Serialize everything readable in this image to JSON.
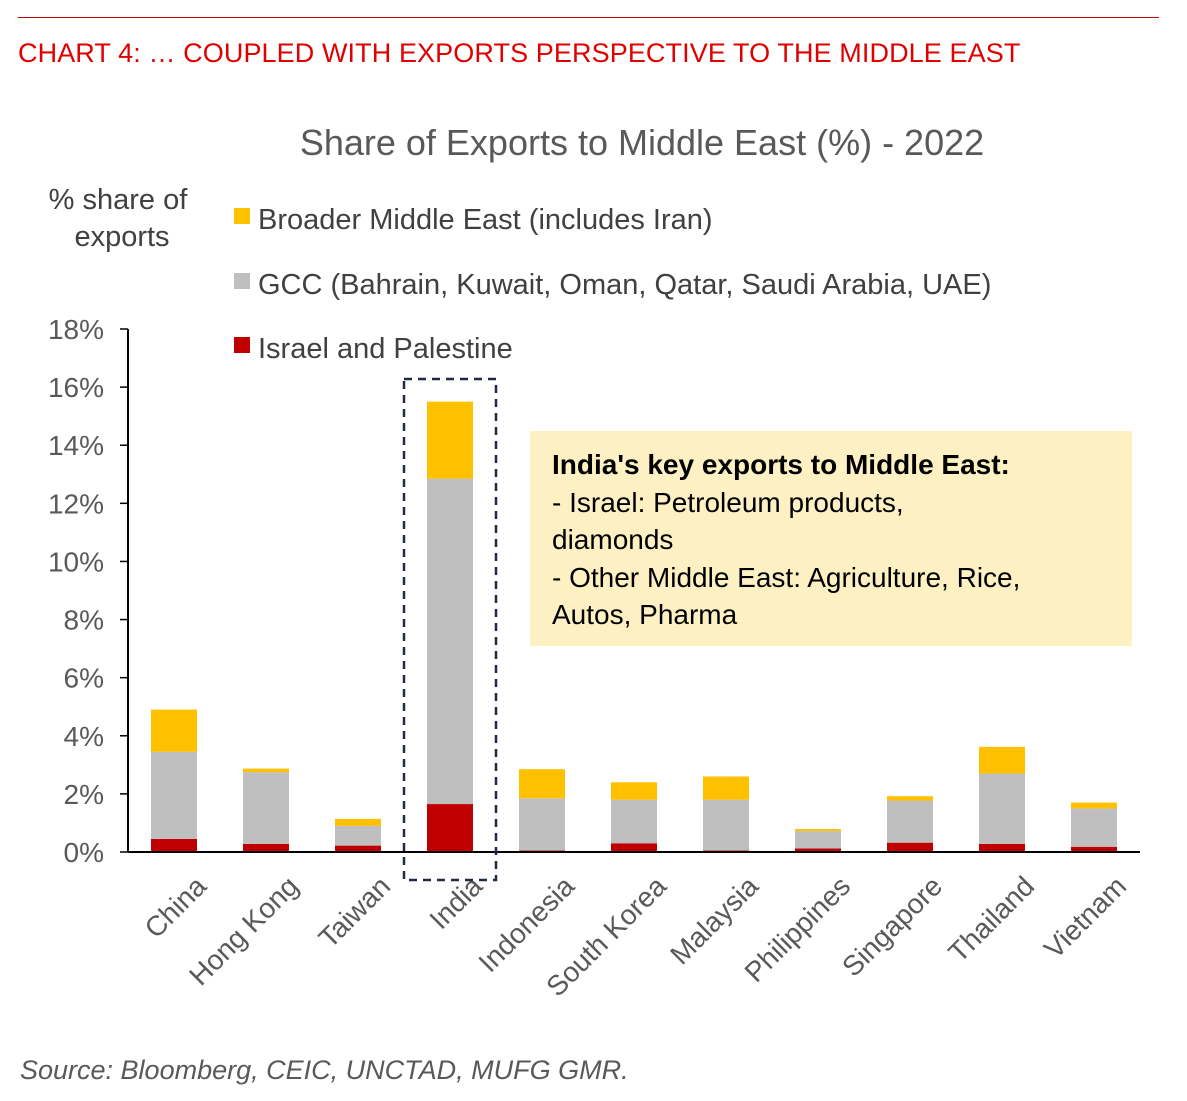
{
  "header": "CHART 4: … COUPLED WITH EXPORTS PERSPECTIVE TO THE MIDDLE EAST",
  "source": "Source: Bloomberg, CEIC, UNCTAD, MUFG GMR.",
  "highlight_category": "India",
  "annotation": {
    "heading": "India's key exports to Middle East:",
    "lines": [
      "- Israel: Petroleum products,",
      "diamonds",
      "- Other Middle East: Agriculture, Rice,",
      "Autos, Pharma"
    ]
  },
  "colors": {
    "header": "#e00000",
    "broader_middle_east": "#ffc000",
    "gcc": "#bfbfbf",
    "israel_palestine": "#c00000",
    "annotation_bg": "#fdf0c2",
    "highlight_border": "#1f2a44"
  },
  "chart_data": {
    "type": "bar",
    "stacked": true,
    "title": "Share of Exports to Middle East (%) - 2022",
    "ylabel": "% share of exports",
    "xlabel": "",
    "ylim": [
      0,
      18
    ],
    "yticks": [
      "0%",
      "2%",
      "4%",
      "6%",
      "8%",
      "10%",
      "12%",
      "14%",
      "16%",
      "18%"
    ],
    "grid": false,
    "legend_position": "top-left",
    "categories": [
      "China",
      "Hong Kong",
      "Taiwan",
      "India",
      "Indonesia",
      "South Korea",
      "Malaysia",
      "Philippines",
      "Singapore",
      "Thailand",
      "Vietnam"
    ],
    "series": [
      {
        "name": "Israel and Palestine",
        "values": [
          0.45,
          0.28,
          0.22,
          1.65,
          0.05,
          0.3,
          0.05,
          0.12,
          0.32,
          0.28,
          0.18
        ]
      },
      {
        "name": "GCC (Bahrain, Kuwait, Oman, Qatar, Saudi Arabia, UAE)",
        "values": [
          3.0,
          2.47,
          0.68,
          11.2,
          1.8,
          1.5,
          1.75,
          0.6,
          1.45,
          2.42,
          1.32
        ]
      },
      {
        "name": "Broader Middle East (includes Iran)",
        "values": [
          1.45,
          0.12,
          0.24,
          2.65,
          1.0,
          0.6,
          0.8,
          0.07,
          0.15,
          0.92,
          0.2
        ]
      }
    ]
  }
}
